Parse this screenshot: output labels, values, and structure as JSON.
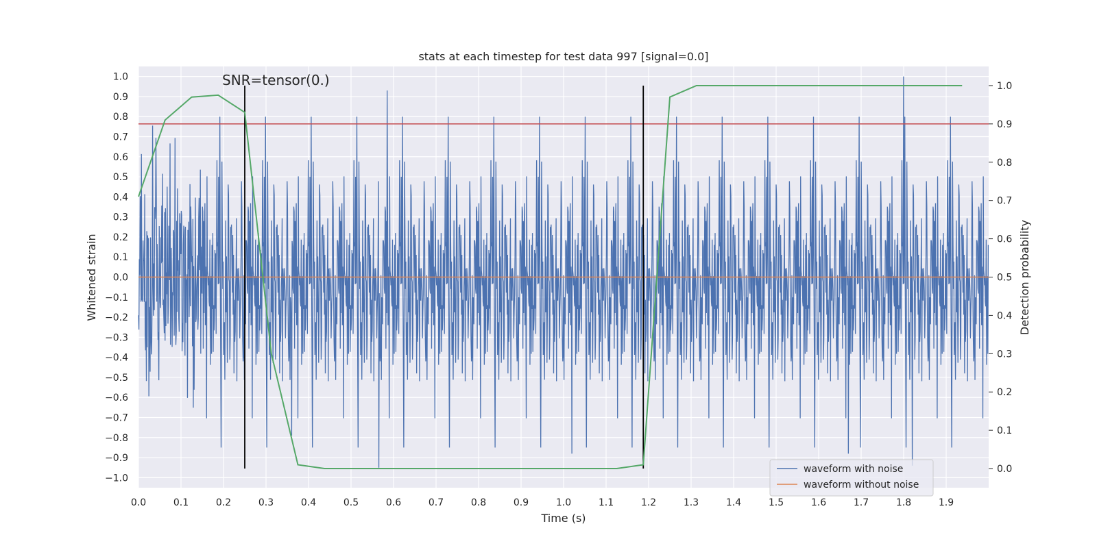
{
  "chart_data": {
    "type": "line",
    "title": "stats at each timestep for test data 997 [signal=0.0]",
    "xlabel": "Time (s)",
    "ylabel": "Whitened strain",
    "y2label": "Detection probability",
    "xlim": [
      0.0,
      2.0
    ],
    "ylim": [
      -1.05,
      1.05
    ],
    "y2lim": [
      -0.05,
      1.05
    ],
    "xticks": [
      "0.0",
      "0.1",
      "0.2",
      "0.3",
      "0.4",
      "0.5",
      "0.6",
      "0.7",
      "0.8",
      "0.9",
      "1.0",
      "1.1",
      "1.2",
      "1.3",
      "1.4",
      "1.5",
      "1.6",
      "1.7",
      "1.8",
      "1.9"
    ],
    "yticks": [
      "1.0",
      "0.9",
      "0.8",
      "0.7",
      "0.6",
      "0.5",
      "0.4",
      "0.3",
      "0.2",
      "0.1",
      "0.0",
      "-0.1",
      "-0.2",
      "-0.3",
      "-0.4",
      "-0.5",
      "-0.6",
      "-0.7",
      "-0.8",
      "-0.9",
      "-1.0"
    ],
    "y2ticks": [
      "1.0",
      "0.9",
      "0.8",
      "0.7",
      "0.6",
      "0.5",
      "0.4",
      "0.3",
      "0.2",
      "0.1",
      "0.0"
    ],
    "grid": true,
    "legend_position": "lower-right",
    "annotation": "SNR=tensor(0.)",
    "series": [
      {
        "name": "waveform with noise",
        "color": "#4c72b0",
        "axis": "left",
        "description": "dense noise signal, approx. 2048 samples over 0–2 s, range roughly ±1.0",
        "peaks": [
          {
            "x": 0.565,
            "y": -0.95
          },
          {
            "x": 0.585,
            "y": 0.93
          },
          {
            "x": 1.8,
            "y": 1.0
          },
          {
            "x": 1.82,
            "y": -0.94
          },
          {
            "x": 0.36,
            "y": -0.79
          },
          {
            "x": 1.02,
            "y": -0.88
          },
          {
            "x": 1.67,
            "y": -0.88
          }
        ]
      },
      {
        "name": "waveform without noise",
        "color": "#dd8452",
        "axis": "left",
        "x": [
          0.0,
          2.0
        ],
        "y": [
          0.0,
          0.0
        ]
      },
      {
        "name": "detection probability",
        "color": "#55a868",
        "axis": "right",
        "x": [
          0.0,
          0.0625,
          0.125,
          0.1875,
          0.25,
          0.3125,
          0.375,
          0.4375,
          0.5,
          0.5625,
          0.625,
          0.6875,
          0.75,
          0.8125,
          0.875,
          0.9375,
          1.0,
          1.0625,
          1.125,
          1.1875,
          1.25,
          1.3125,
          1.375,
          1.4375,
          1.5,
          1.5625,
          1.625,
          1.6875,
          1.75,
          1.8125,
          1.875,
          1.9375
        ],
        "y": [
          0.71,
          0.91,
          0.97,
          0.975,
          0.93,
          0.3,
          0.01,
          0.0,
          0.0,
          0.0,
          0.0,
          0.0,
          0.0,
          0.0,
          0.0,
          0.0,
          0.0,
          0.0,
          0.0,
          0.01,
          0.97,
          1.0,
          1.0,
          1.0,
          1.0,
          1.0,
          1.0,
          1.0,
          1.0,
          1.0,
          1.0,
          1.0
        ]
      }
    ],
    "threshold": {
      "color": "#c44e52",
      "axis": "right",
      "y": 0.9
    },
    "markers": [
      {
        "color": "#000000",
        "x": 0.25,
        "y_range": [
          0.0,
          1.0
        ]
      },
      {
        "color": "#000000",
        "x": 1.1875,
        "y_range": [
          0.0,
          1.0
        ]
      }
    ]
  }
}
